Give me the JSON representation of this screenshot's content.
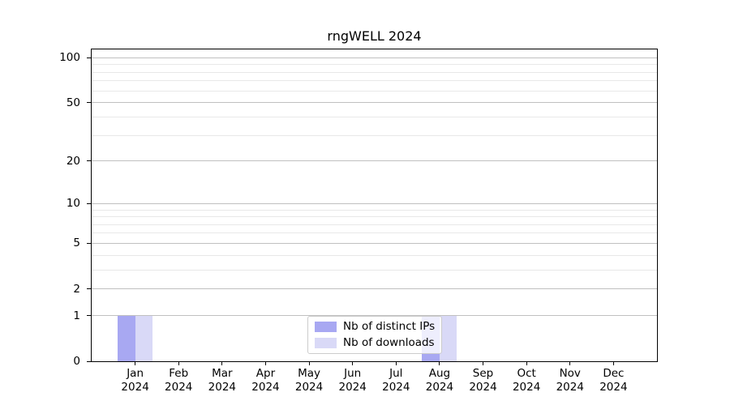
{
  "title": "rngWELL 2024",
  "legend": {
    "items": [
      {
        "label": "Nb of distinct IPs",
        "color": "#a8a8f2"
      },
      {
        "label": "Nb of downloads",
        "color": "#d9d9f7"
      }
    ]
  },
  "y_axis": {
    "tick_labels": [
      "100",
      "50",
      "20",
      "10",
      "5",
      "2",
      "1",
      "0"
    ],
    "minor_gridlines": [
      3,
      4,
      6,
      7,
      8,
      9,
      30,
      40,
      60,
      70,
      80,
      90
    ]
  },
  "x_axis": {
    "categories": [
      {
        "month": "Jan",
        "year": "2024"
      },
      {
        "month": "Feb",
        "year": "2024"
      },
      {
        "month": "Mar",
        "year": "2024"
      },
      {
        "month": "Apr",
        "year": "2024"
      },
      {
        "month": "May",
        "year": "2024"
      },
      {
        "month": "Jun",
        "year": "2024"
      },
      {
        "month": "Jul",
        "year": "2024"
      },
      {
        "month": "Aug",
        "year": "2024"
      },
      {
        "month": "Sep",
        "year": "2024"
      },
      {
        "month": "Oct",
        "year": "2024"
      },
      {
        "month": "Nov",
        "year": "2024"
      },
      {
        "month": "Dec",
        "year": "2024"
      }
    ]
  },
  "chart_data": {
    "type": "bar",
    "title": "rngWELL 2024",
    "categories": [
      "Jan 2024",
      "Feb 2024",
      "Mar 2024",
      "Apr 2024",
      "May 2024",
      "Jun 2024",
      "Jul 2024",
      "Aug 2024",
      "Sep 2024",
      "Oct 2024",
      "Nov 2024",
      "Dec 2024"
    ],
    "series": [
      {
        "name": "Nb of distinct IPs",
        "color": "#a8a8f2",
        "values": [
          1,
          0,
          0,
          0,
          0,
          0,
          0,
          1,
          0,
          0,
          0,
          0
        ]
      },
      {
        "name": "Nb of downloads",
        "color": "#d9d9f7",
        "values": [
          1,
          0,
          0,
          0,
          0,
          0,
          0,
          1,
          0,
          0,
          0,
          0
        ]
      }
    ],
    "xlabel": "",
    "ylabel": "",
    "yscale": "log1p",
    "y_ticks": [
      100,
      50,
      20,
      10,
      5,
      2,
      1,
      0
    ],
    "ylim": [
      0,
      113
    ],
    "grid": true,
    "legend_position": "lower center"
  }
}
